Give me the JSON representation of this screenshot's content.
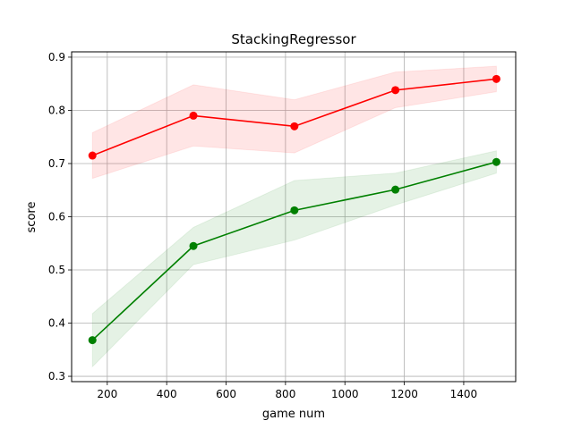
{
  "chart_data": {
    "type": "line",
    "title": "StackingRegressor",
    "xlabel": "game num",
    "ylabel": "score",
    "xlim": [
      80,
      1575
    ],
    "ylim": [
      0.29,
      0.91
    ],
    "xticks": [
      200,
      400,
      600,
      800,
      1000,
      1200,
      1400
    ],
    "yticks": [
      0.3,
      0.4,
      0.5,
      0.6,
      0.7,
      0.8,
      0.9
    ],
    "xtick_labels": [
      "200",
      "400",
      "600",
      "800",
      "1000",
      "1200",
      "1400"
    ],
    "ytick_labels": [
      "0.3",
      "0.4",
      "0.5",
      "0.6",
      "0.7",
      "0.8",
      "0.9"
    ],
    "grid": true,
    "legend": false,
    "x": [
      150,
      490,
      830,
      1170,
      1510
    ],
    "series": [
      {
        "color": "#ff0000",
        "band_color": "#ff0000",
        "values": [
          0.715,
          0.79,
          0.77,
          0.838,
          0.859
        ],
        "lower": [
          0.672,
          0.733,
          0.72,
          0.805,
          0.835
        ],
        "upper": [
          0.758,
          0.848,
          0.82,
          0.872,
          0.883
        ]
      },
      {
        "color": "#008000",
        "band_color": "#008000",
        "values": [
          0.368,
          0.545,
          0.612,
          0.651,
          0.703
        ],
        "lower": [
          0.318,
          0.51,
          0.556,
          0.622,
          0.682
        ],
        "upper": [
          0.418,
          0.58,
          0.668,
          0.682,
          0.724
        ]
      }
    ]
  }
}
